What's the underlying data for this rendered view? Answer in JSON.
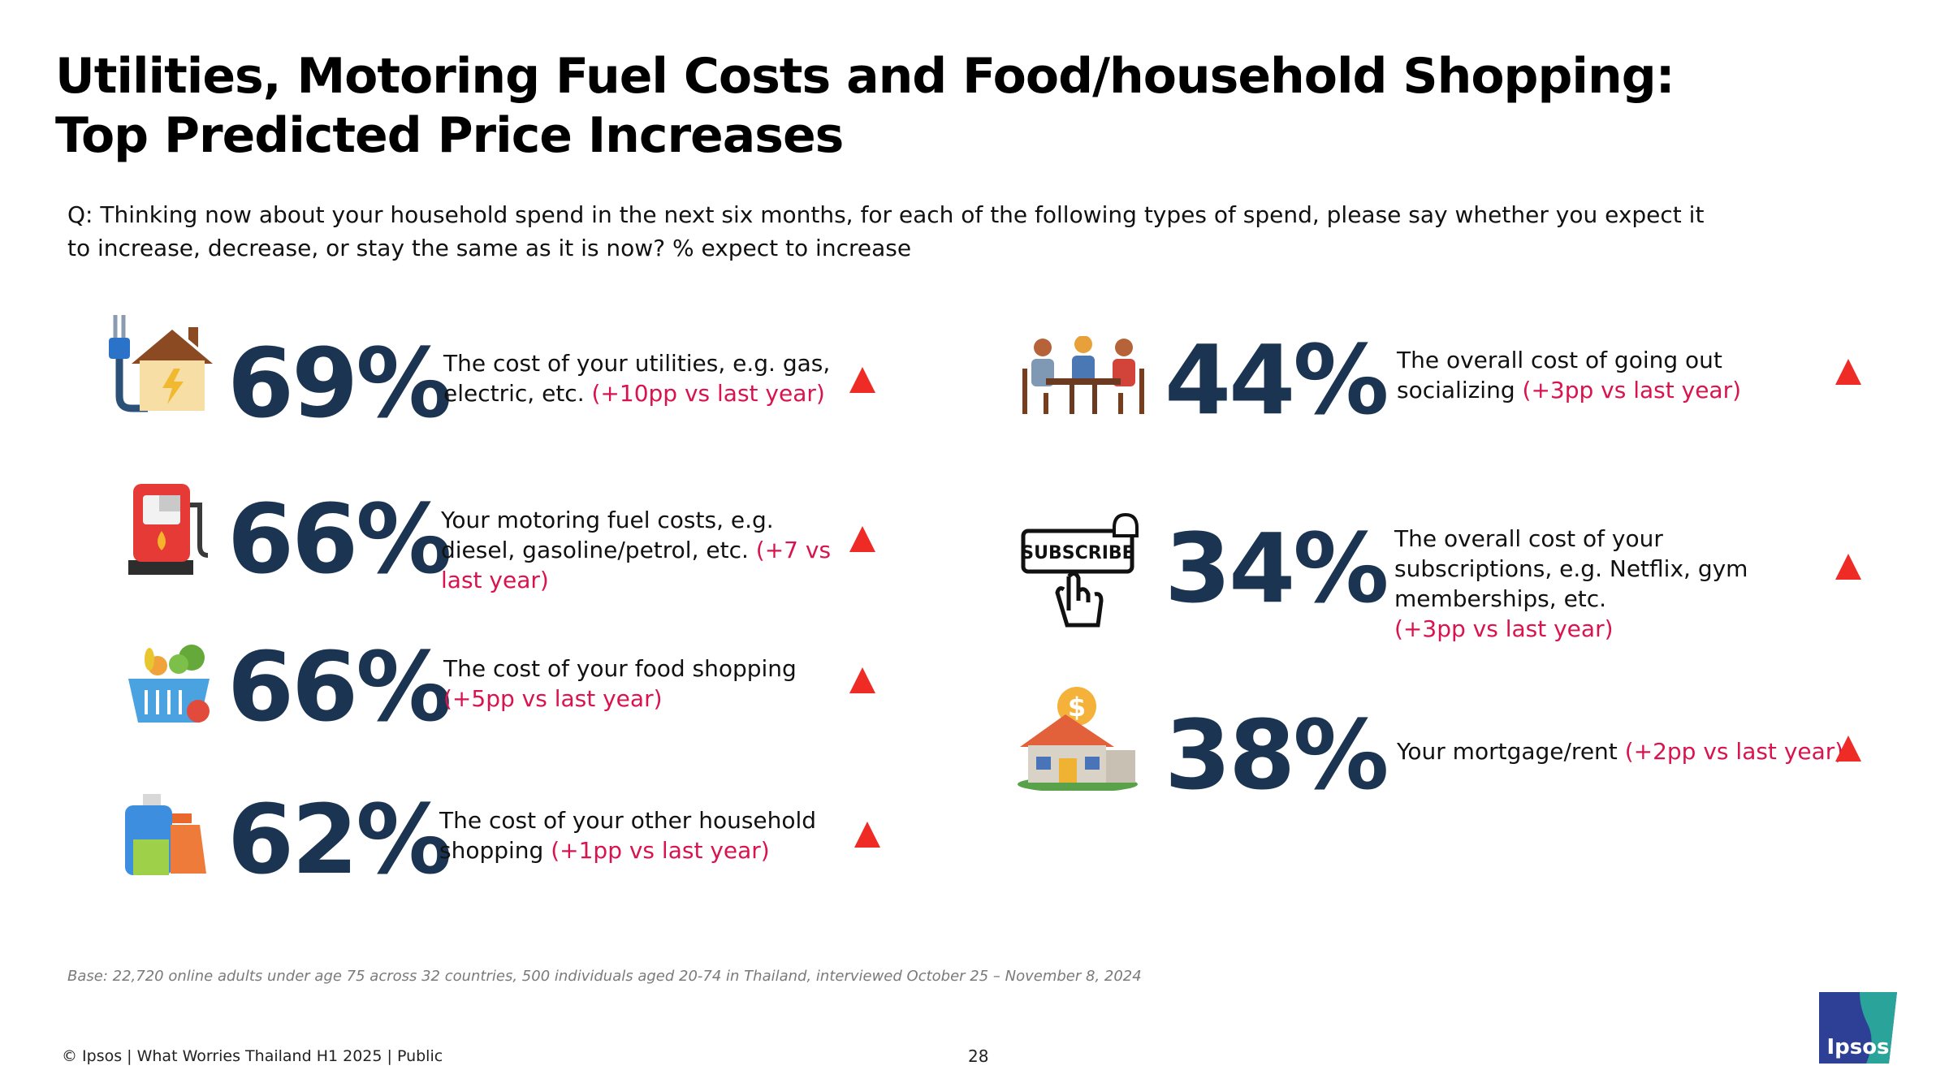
{
  "title": {
    "line1": "Utilities, Motoring Fuel Costs and Food/household Shopping:",
    "line2": "Top Predicted Price Increases"
  },
  "question": "Q: Thinking now about your household spend in the next six months, for each of the following types of spend, please say whether you expect it to increase, decrease, or stay the same as it is now? % expect to increase",
  "items": [
    {
      "icon": "house-plug-icon",
      "value": "69%",
      "desc": "The cost of your utilities, e.g. gas, electric, etc.",
      "change": "(+10pp vs last year)",
      "trend": "up"
    },
    {
      "icon": "fuel-pump-icon",
      "value": "66%",
      "desc": "Your motoring fuel costs, e.g. diesel, gasoline/petrol, etc.",
      "change": "(+7 vs last year)",
      "trend": "up"
    },
    {
      "icon": "grocery-basket-icon",
      "value": "66%",
      "desc": "The cost of your food shopping",
      "change": "(+5pp vs last year)",
      "trend": "up"
    },
    {
      "icon": "household-products-icon",
      "value": "62%",
      "desc": "The cost of your  other household shopping",
      "change": "(+1pp vs last year)",
      "trend": "up"
    },
    {
      "icon": "people-at-table-icon",
      "value": "44%",
      "desc": "The overall cost of going out socializing",
      "change": "(+3pp vs last year)",
      "trend": "up"
    },
    {
      "icon": "subscribe-button-icon",
      "value": "34%",
      "desc": "The overall cost of your subscriptions, e.g. Netflix, gym memberships, etc.",
      "change": "(+3pp vs last year)",
      "trend": "up"
    },
    {
      "icon": "house-dollar-icon",
      "value": "38%",
      "desc": "Your mortgage/rent",
      "change": "(+2pp vs last year)",
      "trend": "up"
    }
  ],
  "subscribe_label": "SUBSCRIBE",
  "base_note": "Base: 22,720 online adults under age 75 across 32 countries, 500 individuals aged 20-74 in Thailand, interviewed October 25  – November 8, 2024",
  "footer": "© Ipsos | What Worries Thailand H1 2025 | Public",
  "page_number": "28",
  "logo_text": "Ipsos",
  "colors": {
    "value": "#1b3451",
    "change": "#d9134d",
    "triangle": "#ee2b24",
    "logo": "#2e3f96"
  }
}
